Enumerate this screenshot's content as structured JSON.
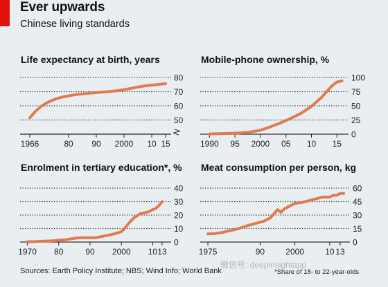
{
  "header": {
    "title": "Ever upwards",
    "subtitle": "Chinese living standards"
  },
  "footer": {
    "sources": "Sources: Earth Policy Institute; NBS; Wind Info; World Bank",
    "footnote": "*Share of 18- to 22-year-olds"
  },
  "watermark": "微信号: deepinsightapp",
  "colors": {
    "line": "#e07a4f",
    "accent": "#e3120b",
    "background": "#e9eef1",
    "grid": "#333333"
  },
  "chart_data": [
    {
      "id": "life",
      "type": "line",
      "title": "Life expectancy at birth, years",
      "x_ticks": [
        "1966",
        "80",
        "90",
        "2000",
        "10",
        "15"
      ],
      "x_tick_values": [
        1966,
        1980,
        1990,
        2000,
        2010,
        2015
      ],
      "xlim": [
        1964,
        2016
      ],
      "ylim": [
        40,
        80
      ],
      "y_ticks": [
        50,
        60,
        70,
        80
      ],
      "y_tick_labels": [
        "50",
        "60",
        "70",
        "80"
      ],
      "axis_break": "N",
      "grid": true,
      "series": [
        {
          "x": [
            1966,
            1968,
            1970,
            1972,
            1974,
            1976,
            1978,
            1980,
            1982,
            1984,
            1986,
            1988,
            1990,
            1992,
            1994,
            1996,
            1998,
            2000,
            2002,
            2004,
            2006,
            2008,
            2010,
            2012,
            2014,
            2015
          ],
          "y": [
            51.5,
            56,
            59.5,
            62,
            63.8,
            65.2,
            66.3,
            67,
            67.7,
            68.2,
            68.6,
            69,
            69.3,
            69.6,
            70,
            70.3,
            70.8,
            71.4,
            72.1,
            72.9,
            73.6,
            74.2,
            74.6,
            75,
            75.4,
            75.6
          ]
        }
      ]
    },
    {
      "id": "mobile",
      "type": "line",
      "title": "Mobile-phone ownership, %",
      "x_ticks": [
        "1990",
        "95",
        "2000",
        "05",
        "10",
        "15"
      ],
      "x_tick_values": [
        1990,
        1995,
        2000,
        2005,
        2010,
        2015
      ],
      "xlim": [
        1989,
        2017
      ],
      "ylim": [
        0,
        100
      ],
      "y_ticks": [
        0,
        25,
        50,
        75,
        100
      ],
      "y_tick_labels": [
        "0",
        "25",
        "50",
        "75",
        "100"
      ],
      "grid": true,
      "series": [
        {
          "x": [
            1990,
            1992,
            1994,
            1996,
            1998,
            2000,
            2002,
            2004,
            2006,
            2008,
            2010,
            2012,
            2014,
            2015,
            2016
          ],
          "y": [
            0.5,
            0.8,
            1.3,
            2.2,
            3.8,
            6.8,
            13,
            20,
            28,
            37,
            49,
            65,
            85,
            92,
            94
          ]
        }
      ]
    },
    {
      "id": "tertiary",
      "type": "line",
      "title": "Enrolment in tertiary education*, %",
      "x_ticks": [
        "1970",
        "80",
        "90",
        "2000",
        "10",
        "13"
      ],
      "x_tick_values": [
        1970,
        1980,
        1990,
        2000,
        2010,
        2013
      ],
      "xlim": [
        1969,
        2015
      ],
      "ylim": [
        0,
        40
      ],
      "y_ticks": [
        0,
        10,
        20,
        30,
        40
      ],
      "y_tick_labels": [
        "0",
        "10",
        "20",
        "30",
        "40"
      ],
      "grid": true,
      "series": [
        {
          "x": [
            1970,
            1972,
            1974,
            1976,
            1978,
            1980,
            1982,
            1984,
            1986,
            1988,
            1990,
            1992,
            1994,
            1996,
            1998,
            2000,
            2001,
            2002,
            2003,
            2004,
            2005,
            2006,
            2007,
            2008,
            2009,
            2010,
            2011,
            2012,
            2013
          ],
          "y": [
            0.2,
            0.3,
            0.5,
            0.7,
            0.9,
            1.4,
            1.7,
            2.4,
            3.1,
            3.3,
            3.2,
            3.3,
            4.2,
            5.2,
            6.2,
            7.7,
            10,
            13,
            15.5,
            18,
            19.5,
            21,
            21.5,
            22,
            22.8,
            24,
            25,
            27,
            30
          ]
        }
      ]
    },
    {
      "id": "meat",
      "type": "line",
      "title": "Meat consumption per person, kg",
      "x_ticks": [
        "1975",
        "90",
        "2000",
        "10",
        "13"
      ],
      "x_tick_values": [
        1975,
        1990,
        2000,
        2010,
        2013
      ],
      "xlim": [
        1974,
        2015
      ],
      "ylim": [
        0,
        60
      ],
      "y_ticks": [
        0,
        15,
        30,
        45,
        60
      ],
      "y_tick_labels": [
        "0",
        "15",
        "30",
        "45",
        "60"
      ],
      "grid": true,
      "series": [
        {
          "x": [
            1975,
            1977,
            1979,
            1981,
            1983,
            1985,
            1987,
            1989,
            1991,
            1993,
            1995,
            1996,
            1997,
            1998,
            2000,
            2002,
            2004,
            2006,
            2008,
            2010,
            2011,
            2012,
            2013,
            2014
          ],
          "y": [
            9,
            9.5,
            10.5,
            12.5,
            14,
            16.5,
            19,
            21,
            23,
            27,
            36,
            33,
            37,
            39,
            43,
            44,
            46,
            48,
            50,
            50,
            52,
            52,
            54,
            54
          ]
        }
      ]
    }
  ]
}
